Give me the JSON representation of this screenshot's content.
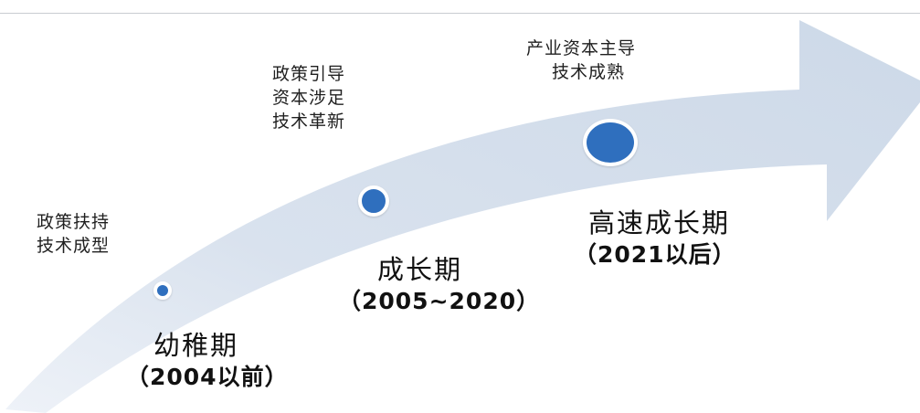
{
  "colors": {
    "arrow_fill": "#d5dfec",
    "dot_fill": "#2f6fbe",
    "text": "#111111"
  },
  "stages": [
    {
      "notes": [
        "政策扶持",
        "技术成型"
      ],
      "name": "幼稚期",
      "years": "（2004以前）"
    },
    {
      "notes": [
        "政策引导",
        "资本涉足",
        "技术革新"
      ],
      "name": "成长期",
      "years": "（2005~2020）"
    },
    {
      "notes": [
        "产业资本主导",
        "技术成熟"
      ],
      "name": "高速成长期",
      "years": "（2021以后）"
    }
  ]
}
